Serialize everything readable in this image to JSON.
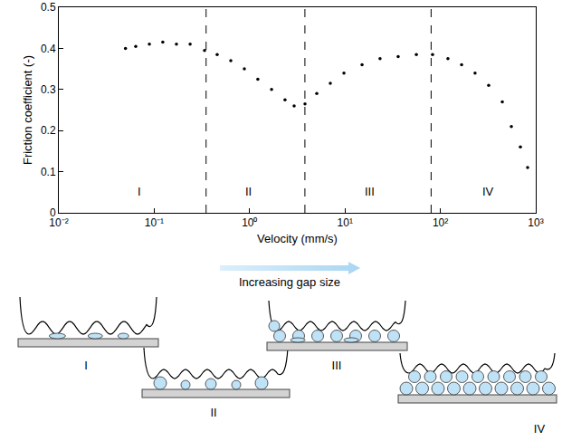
{
  "chart_data": {
    "type": "scatter",
    "marker": "circle",
    "color": "#000000",
    "x_label": "Velocity (mm/s)",
    "y_label": "Friction coefficient (-)",
    "log": "x",
    "grid": false,
    "x": [
      0.05,
      0.064,
      0.089,
      0.123,
      0.171,
      0.238,
      0.337,
      0.457,
      0.635,
      0.881,
      1.22,
      1.7,
      2.35,
      2.93,
      3.81,
      5.06,
      7.02,
      9.75,
      15.1,
      23.3,
      36.1,
      56.0,
      82.8,
      120,
      167,
      231,
      321,
      446,
      555,
      690,
      822
    ],
    "values": [
      0.4,
      0.405,
      0.41,
      0.415,
      0.41,
      0.41,
      0.395,
      0.385,
      0.37,
      0.35,
      0.325,
      0.3,
      0.275,
      0.26,
      0.265,
      0.29,
      0.315,
      0.34,
      0.36,
      0.375,
      0.38,
      0.385,
      0.385,
      0.375,
      0.36,
      0.34,
      0.31,
      0.27,
      0.21,
      0.16,
      0.11
    ],
    "xlim": [
      0.01,
      1000
    ],
    "xticks": [
      {
        "value": 0.01,
        "label": "10⁻²"
      },
      {
        "value": 0.1,
        "label": "10⁻¹"
      },
      {
        "value": 1,
        "label": "10⁰"
      },
      {
        "value": 10,
        "label": "10¹"
      },
      {
        "value": 100,
        "label": "10²"
      },
      {
        "value": 1000,
        "label": "10³"
      }
    ],
    "ylim": [
      0,
      0.5
    ],
    "yticks": [
      0,
      0.1,
      0.2,
      0.3,
      0.4,
      0.5
    ],
    "boundaries": [
      0.35,
      3.8,
      80
    ],
    "boundary_line_style": "dashed",
    "regions": [
      {
        "label": "I",
        "x": 0.07,
        "y": 0.03
      },
      {
        "label": "II",
        "x": 0.98,
        "y": 0.03
      },
      {
        "label": "III",
        "x": 18,
        "y": 0.03
      },
      {
        "label": "IV",
        "x": 320,
        "y": 0.03
      }
    ]
  },
  "diagram": {
    "arrow_label": "Increasing gap size",
    "panels": [
      {
        "label": "I"
      },
      {
        "label": "II"
      },
      {
        "label": "III"
      },
      {
        "label": "IV"
      }
    ]
  }
}
